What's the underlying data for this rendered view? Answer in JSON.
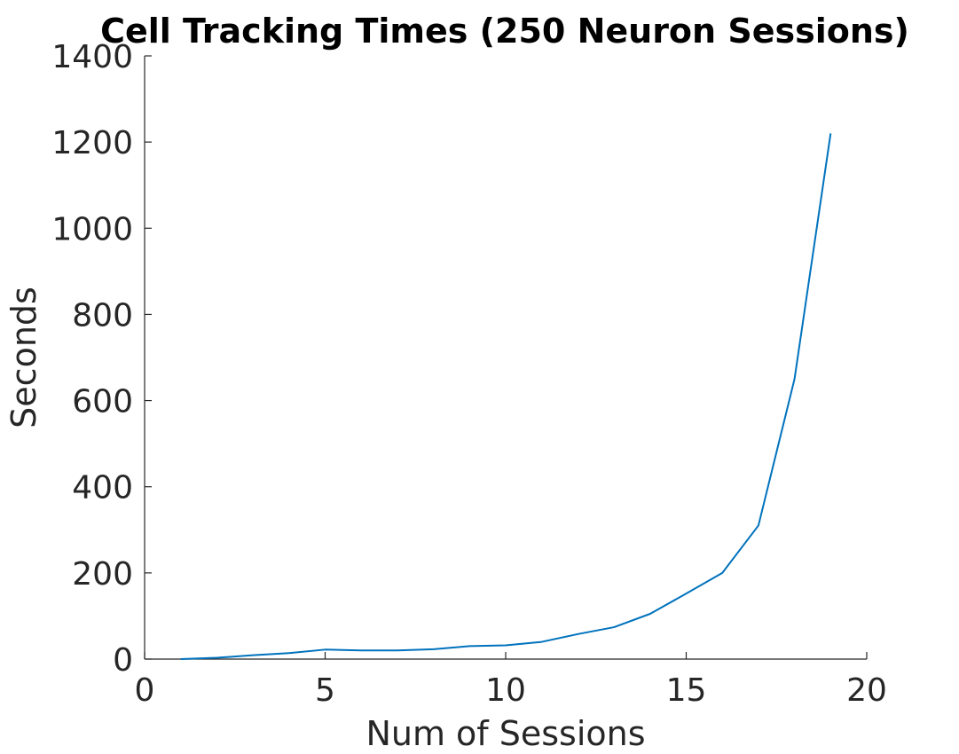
{
  "chart_data": {
    "type": "line",
    "title": "Cell Tracking Times (250 Neuron Sessions)",
    "xlabel": "Num of Sessions",
    "ylabel": "Seconds",
    "xlim": [
      0,
      20
    ],
    "ylim": [
      0,
      1400
    ],
    "xticks": [
      0,
      5,
      10,
      15,
      20
    ],
    "yticks": [
      0,
      200,
      400,
      600,
      800,
      1000,
      1200,
      1400
    ],
    "grid": false,
    "series": [
      {
        "color": "#0072BD",
        "x": [
          1,
          2,
          3,
          4,
          5,
          6,
          7,
          8,
          9,
          10,
          11,
          12,
          13,
          14,
          15,
          16,
          17,
          18,
          19
        ],
        "y": [
          0,
          3,
          9,
          14,
          22,
          20,
          20,
          23,
          30,
          32,
          40,
          58,
          74,
          105,
          152,
          200,
          310,
          650,
          1220
        ]
      }
    ]
  }
}
